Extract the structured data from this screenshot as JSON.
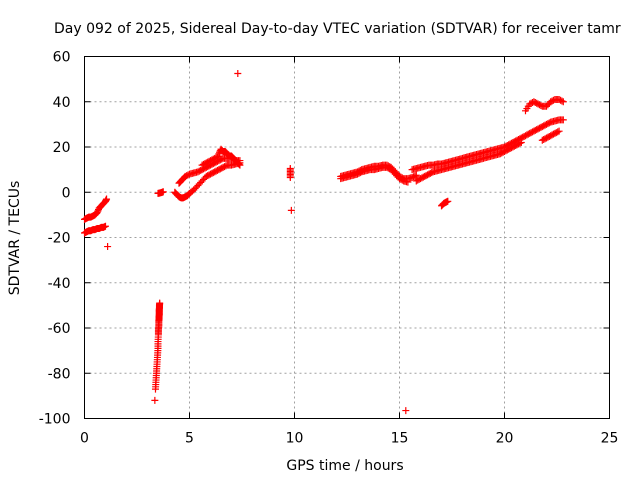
{
  "chart_data": {
    "type": "scatter",
    "title": "Day 092 of 2025, Sidereal Day-to-day VTEC variation (SDTVAR) for receiver tamr",
    "xlabel": "GPS time / hours",
    "ylabel": "SDTVAR / TECUs",
    "xlim": [
      0,
      25
    ],
    "ylim": [
      -100,
      60
    ],
    "xticks": [
      "0",
      "5",
      "10",
      "15",
      "20",
      "25"
    ],
    "yticks": [
      "60",
      "40",
      "20",
      "0",
      "-20",
      "-40",
      "-60",
      "-80",
      "-100"
    ],
    "grid": true,
    "marker": "+",
    "color": "#ff0000",
    "series": [
      {
        "name": "seg-00-0.5h-upper",
        "x": [
          0.0,
          0.1,
          0.2,
          0.3,
          0.4,
          0.5,
          0.6,
          0.7,
          0.8,
          0.9,
          1.0,
          1.05
        ],
        "y": [
          -12,
          -11.5,
          -11,
          -11,
          -10.5,
          -10,
          -9,
          -7,
          -6,
          -5,
          -4,
          -3
        ]
      },
      {
        "name": "seg-00-1h-lower",
        "x": [
          0.0,
          0.1,
          0.2,
          0.3,
          0.4,
          0.5,
          0.6,
          0.7,
          0.8,
          0.9,
          1.0
        ],
        "y": [
          -18,
          -17.5,
          -17,
          -17,
          -16.5,
          -16.5,
          -16,
          -16,
          -15.5,
          -15.5,
          -15
        ]
      },
      {
        "name": "isolated-1.1h",
        "x": [
          1.1
        ],
        "y": [
          -24
        ]
      },
      {
        "name": "seg-3.4h-drop",
        "x": [
          3.35,
          3.38,
          3.4,
          3.42,
          3.44,
          3.46,
          3.48,
          3.5,
          3.5,
          3.52,
          3.52,
          3.54,
          3.54,
          3.55,
          3.55,
          3.56,
          3.56,
          3.56,
          3.57,
          3.57,
          3.58
        ],
        "y": [
          -92,
          -87,
          -84,
          -81,
          -78,
          -75,
          -72,
          -69,
          -66,
          -63,
          -61,
          -59,
          -57,
          -56,
          -55,
          -54,
          -53,
          -52,
          -51,
          -50,
          -49
        ]
      },
      {
        "name": "seg-3.6h-zero",
        "x": [
          3.5,
          3.6,
          3.7,
          3.75
        ],
        "y": [
          -0.5,
          -0.3,
          0,
          0.2
        ]
      },
      {
        "name": "seg-4.5-7.5h-a",
        "x": [
          4.3,
          4.4,
          4.5,
          4.6,
          4.7,
          4.8,
          4.9,
          5.0,
          5.2,
          5.4,
          5.6,
          5.8,
          6.0,
          6.2,
          6.4,
          6.6,
          6.8,
          7.0,
          7.2,
          7.4
        ],
        "y": [
          0,
          -1,
          -2,
          -2.5,
          -2.5,
          -2,
          -1.5,
          -0.5,
          1,
          3,
          5,
          7,
          8,
          9,
          10,
          11,
          12,
          12,
          12.5,
          13
        ]
      },
      {
        "name": "seg-4.5-7.5h-b",
        "x": [
          4.5,
          4.6,
          4.7,
          4.8,
          5.0,
          5.2,
          5.4,
          5.6,
          5.8,
          6.0,
          6.2,
          6.4,
          6.6,
          6.8,
          7.0,
          7.2,
          7.4
        ],
        "y": [
          4,
          5,
          6,
          7,
          8,
          8.5,
          9,
          10,
          11,
          12,
          13,
          14,
          15,
          15,
          15,
          14,
          14
        ]
      },
      {
        "name": "seg-6.5-7.4h-top",
        "x": [
          6.4,
          6.5,
          6.6,
          6.7,
          6.8,
          6.9,
          7.0,
          7.1,
          7.2,
          7.3,
          7.4
        ],
        "y": [
          17,
          19,
          18,
          18,
          17,
          16,
          16,
          15,
          14,
          13,
          12
        ]
      },
      {
        "name": "seg-5.5-6.5h-mid",
        "x": [
          5.6,
          5.8,
          6.0,
          6.2,
          6.4
        ],
        "y": [
          12,
          13,
          14,
          15,
          16
        ]
      },
      {
        "name": "isolated-7.3h",
        "x": [
          7.3
        ],
        "y": [
          52.5
        ]
      },
      {
        "name": "isolated-9.8h",
        "x": [
          9.8,
          9.8,
          9.8
        ],
        "y": [
          10.5,
          8.5,
          6.5
        ]
      },
      {
        "name": "isolated-9.85h-neg",
        "x": [
          9.85
        ],
        "y": [
          -8
        ]
      },
      {
        "name": "seg-12-15.5h-a",
        "x": [
          12.2,
          12.4,
          12.6,
          12.8,
          13.0,
          13.2,
          13.4,
          13.6,
          13.8,
          14.0,
          14.2,
          14.4,
          14.6,
          14.8,
          15.0,
          15.2,
          15.4,
          15.6,
          15.8
        ],
        "y": [
          7,
          7.5,
          8,
          8.5,
          9,
          10,
          10.5,
          11,
          11.5,
          11.5,
          12,
          12,
          11,
          9,
          7,
          6,
          6,
          6.5,
          7.5
        ]
      },
      {
        "name": "seg-12-15.5h-b",
        "x": [
          12.2,
          12.4,
          12.6,
          12.8,
          13.0,
          13.2,
          13.4,
          13.6,
          13.8,
          14.0,
          14.2,
          14.4,
          14.6,
          14.8,
          15.0,
          15.2,
          15.4
        ],
        "y": [
          6,
          6.5,
          7,
          7.5,
          8,
          9,
          9.5,
          10,
          10,
          10.5,
          11,
          11,
          10,
          8,
          6,
          5,
          4.5
        ]
      },
      {
        "name": "isolated-15.3h",
        "x": [
          15.3
        ],
        "y": [
          -96.5
        ]
      },
      {
        "name": "seg-15.5-23h-a",
        "x": [
          15.6,
          15.8,
          16.0,
          16.2,
          16.4,
          16.6,
          16.8,
          17.0,
          17.2,
          17.4,
          17.6,
          17.8,
          18.0,
          18.2,
          18.4,
          18.6,
          18.8,
          19.0,
          19.2,
          19.4,
          19.6,
          19.8,
          20.0,
          20.2,
          20.4,
          20.6,
          20.8,
          21.0,
          21.2,
          21.4,
          21.6,
          21.8,
          22.0,
          22.2,
          22.4,
          22.6,
          22.8
        ],
        "y": [
          10,
          10.5,
          11,
          11.5,
          12,
          12,
          12.5,
          12.5,
          13,
          13.5,
          14,
          14.5,
          15,
          15.5,
          16,
          16.5,
          17,
          17.5,
          18,
          18.5,
          19,
          19.5,
          20,
          21,
          22,
          23,
          24,
          25,
          26,
          27,
          28,
          29,
          30,
          31,
          31.5,
          32,
          32
        ]
      },
      {
        "name": "seg-15.5-23h-b",
        "x": [
          15.8,
          16.0,
          16.2,
          16.4,
          16.6,
          16.8,
          17.0,
          17.2,
          17.4,
          17.6,
          17.8,
          18.0,
          18.2,
          18.4,
          18.6,
          18.8,
          19.0,
          19.2,
          19.4,
          19.6,
          19.8,
          20.0,
          20.2,
          20.4,
          20.6,
          20.8
        ],
        "y": [
          5,
          6,
          7,
          8,
          9,
          9.5,
          10,
          10.5,
          11,
          11.5,
          12,
          12.5,
          13,
          13.5,
          14,
          14.5,
          15,
          15.5,
          16,
          16.5,
          17,
          18,
          19,
          20,
          21,
          22
        ]
      },
      {
        "name": "seg-21-22.8h-top",
        "x": [
          21.0,
          21.2,
          21.4,
          21.6,
          21.8,
          22.0,
          22.2,
          22.4,
          22.6,
          22.8
        ],
        "y": [
          36,
          39,
          40,
          39,
          38,
          38,
          40,
          41,
          41,
          40
        ]
      },
      {
        "name": "seg-21.8-22.8h-low",
        "x": [
          21.8,
          22.0,
          22.2,
          22.4,
          22.6
        ],
        "y": [
          23,
          24,
          25,
          26,
          27
        ]
      },
      {
        "name": "seg-17.2h-neg",
        "x": [
          17.0,
          17.1,
          17.2,
          17.3
        ],
        "y": [
          -6,
          -5,
          -4.5,
          -4
        ]
      }
    ]
  }
}
